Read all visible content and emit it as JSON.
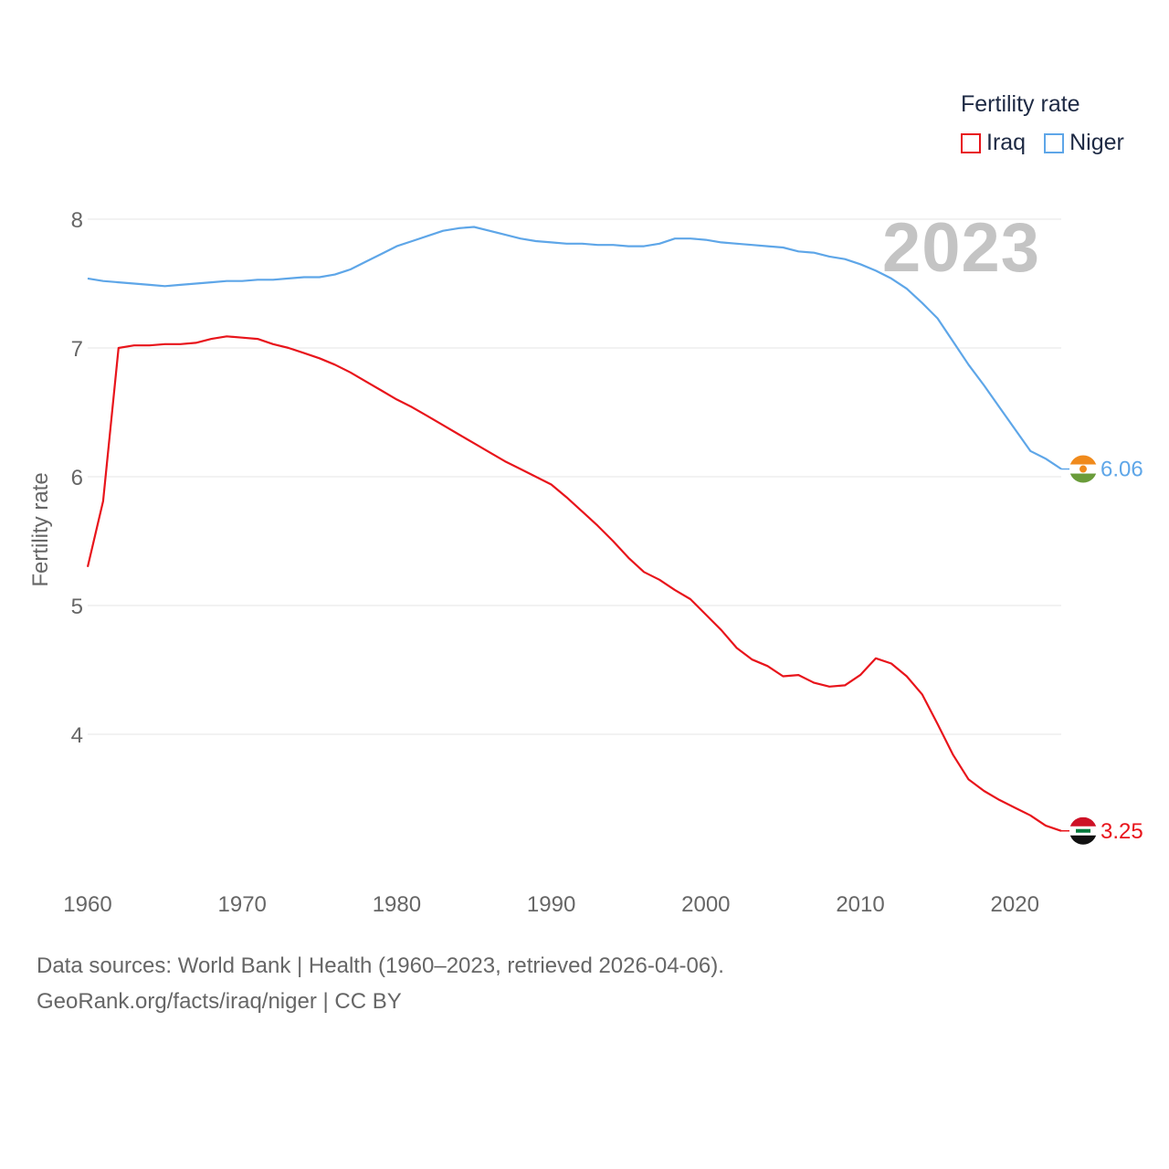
{
  "legend": {
    "title": "Fertility rate",
    "items": [
      {
        "label": "Iraq",
        "color": "#e8141b"
      },
      {
        "label": "Niger",
        "color": "#5ea6e8"
      }
    ]
  },
  "current_year": "2023",
  "footer": {
    "line1": "Data sources: World Bank | Health (1960–2023, retrieved 2026-04-06).",
    "line2": "GeoRank.org/facts/iraq/niger | CC BY"
  },
  "chart_data": {
    "type": "line",
    "title": "Fertility rate",
    "xlabel": "",
    "ylabel": "Fertility rate",
    "xlim": [
      1960,
      2023
    ],
    "ylim": [
      3.0,
      8.2
    ],
    "x_ticks": [
      1960,
      1970,
      1980,
      1990,
      2000,
      2010,
      2020
    ],
    "y_ticks": [
      4,
      5,
      6,
      7,
      8
    ],
    "grid": true,
    "legend_position": "top-right",
    "x": [
      1960,
      1961,
      1962,
      1963,
      1964,
      1965,
      1966,
      1967,
      1968,
      1969,
      1970,
      1971,
      1972,
      1973,
      1974,
      1975,
      1976,
      1977,
      1978,
      1979,
      1980,
      1981,
      1982,
      1983,
      1984,
      1985,
      1986,
      1987,
      1988,
      1989,
      1990,
      1991,
      1992,
      1993,
      1994,
      1995,
      1996,
      1997,
      1998,
      1999,
      2000,
      2001,
      2002,
      2003,
      2004,
      2005,
      2006,
      2007,
      2008,
      2009,
      2010,
      2011,
      2012,
      2013,
      2014,
      2015,
      2016,
      2017,
      2018,
      2019,
      2020,
      2021,
      2022,
      2023
    ],
    "series": [
      {
        "name": "Iraq",
        "color": "#e8141b",
        "end_label": "3.25",
        "values": [
          5.3,
          5.81,
          7.0,
          7.02,
          7.02,
          7.03,
          7.03,
          7.04,
          7.07,
          7.09,
          7.08,
          7.07,
          7.03,
          7.0,
          6.96,
          6.92,
          6.87,
          6.81,
          6.74,
          6.67,
          6.6,
          6.54,
          6.47,
          6.4,
          6.33,
          6.26,
          6.19,
          6.12,
          6.06,
          6.0,
          5.94,
          5.84,
          5.73,
          5.62,
          5.5,
          5.37,
          5.26,
          5.2,
          5.12,
          5.05,
          4.93,
          4.81,
          4.67,
          4.58,
          4.53,
          4.45,
          4.46,
          4.4,
          4.37,
          4.38,
          4.46,
          4.59,
          4.55,
          4.45,
          4.31,
          4.08,
          3.84,
          3.65,
          3.56,
          3.49,
          3.43,
          3.37,
          3.29,
          3.25
        ]
      },
      {
        "name": "Niger",
        "color": "#5ea6e8",
        "end_label": "6.06",
        "values": [
          7.54,
          7.52,
          7.51,
          7.5,
          7.49,
          7.48,
          7.49,
          7.5,
          7.51,
          7.52,
          7.52,
          7.53,
          7.53,
          7.54,
          7.55,
          7.55,
          7.57,
          7.61,
          7.67,
          7.73,
          7.79,
          7.83,
          7.87,
          7.91,
          7.93,
          7.94,
          7.91,
          7.88,
          7.85,
          7.83,
          7.82,
          7.81,
          7.81,
          7.8,
          7.8,
          7.79,
          7.79,
          7.81,
          7.85,
          7.85,
          7.84,
          7.82,
          7.81,
          7.8,
          7.79,
          7.78,
          7.75,
          7.74,
          7.71,
          7.69,
          7.65,
          7.6,
          7.54,
          7.46,
          7.35,
          7.23,
          7.05,
          6.87,
          6.71,
          6.54,
          6.37,
          6.2,
          6.14,
          6.06
        ]
      }
    ]
  }
}
